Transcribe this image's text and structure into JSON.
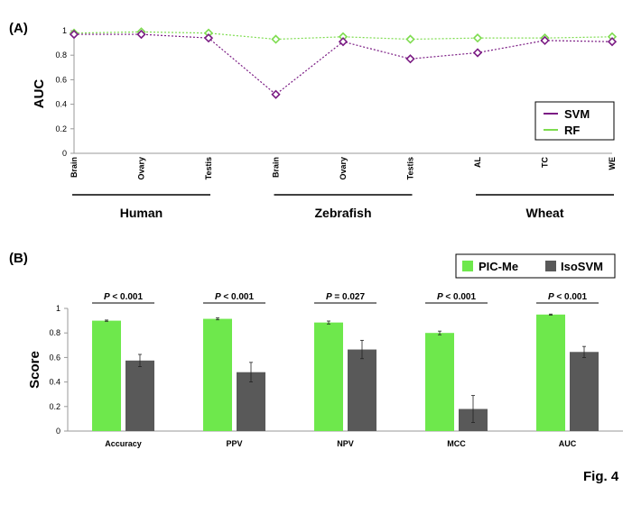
{
  "figure_label": "Fig. 4",
  "chart_data": [
    {
      "panel_label": "(A)",
      "type": "line",
      "ylabel": "AUC",
      "xlabel": "",
      "ylim": [
        0,
        1
      ],
      "yticks": [
        0,
        0.2,
        0.4,
        0.6,
        0.8,
        1
      ],
      "ytick_labels": [
        "0",
        "0.2",
        "0.4",
        "0.6",
        "0.8",
        "1"
      ],
      "categories": [
        "Brain",
        "Ovary",
        "Testis",
        "Brain",
        "Ovary",
        "Testis",
        "AL",
        "TC",
        "WE"
      ],
      "groups": [
        {
          "name": "Human",
          "span": [
            0,
            2
          ]
        },
        {
          "name": "Zebrafish",
          "span": [
            3,
            5
          ]
        },
        {
          "name": "Wheat",
          "span": [
            6,
            8
          ]
        }
      ],
      "series": [
        {
          "name": "SVM",
          "color": "#7b1c84",
          "values": [
            0.97,
            0.97,
            0.94,
            0.48,
            0.91,
            0.77,
            0.82,
            0.92,
            0.91
          ]
        },
        {
          "name": "RF",
          "color": "#7ddc4e",
          "values": [
            0.98,
            0.99,
            0.98,
            0.93,
            0.95,
            0.93,
            0.94,
            0.94,
            0.95
          ]
        }
      ],
      "legend": "bottom-right",
      "grid": false
    },
    {
      "panel_label": "(B)",
      "type": "bar",
      "ylabel": "Score",
      "xlabel": "",
      "ylim": [
        0,
        1
      ],
      "yticks": [
        0,
        0.2,
        0.4,
        0.6,
        0.8,
        1
      ],
      "ytick_labels": [
        "0",
        "0.2",
        "0.4",
        "0.6",
        "0.8",
        "1"
      ],
      "categories": [
        "Accuracy",
        "PPV",
        "NPV",
        "MCC",
        "AUC"
      ],
      "series": [
        {
          "name": "PIC-Me",
          "color": "#6ee84c",
          "values": [
            0.9,
            0.915,
            0.885,
            0.8,
            0.95
          ],
          "errors": [
            0.005,
            0.008,
            0.012,
            0.015,
            0.004
          ]
        },
        {
          "name": "IsoSVM",
          "color": "#595959",
          "values": [
            0.575,
            0.48,
            0.665,
            0.18,
            0.645
          ],
          "errors": [
            0.05,
            0.08,
            0.075,
            0.11,
            0.045
          ]
        }
      ],
      "pvalues": [
        "P < 0.001",
        "P < 0.001",
        "P = 0.027",
        "P < 0.001",
        "P < 0.001"
      ],
      "legend": "top-right",
      "grid": false
    }
  ]
}
